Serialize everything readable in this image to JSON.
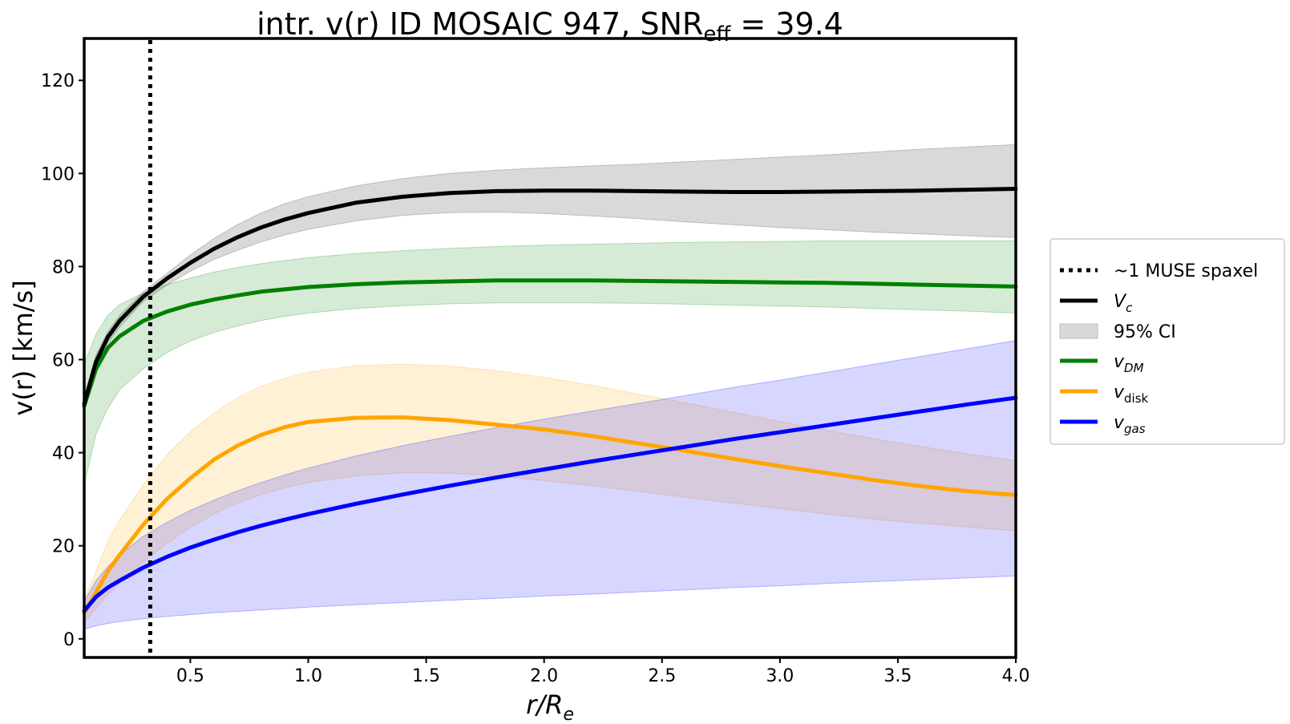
{
  "chart_data": {
    "type": "line",
    "title": {
      "main": "intr. v(r) ID MOSAIC 947, SNR",
      "sub": "eff",
      "tail": " = 39.4"
    },
    "xlabel": {
      "main": "r/R",
      "sub": "e"
    },
    "ylabel": "v(r) [km/s]",
    "xlim": [
      0.05,
      4.0
    ],
    "ylim": [
      -4,
      129
    ],
    "xticks": [
      0.5,
      1.0,
      1.5,
      2.0,
      2.5,
      3.0,
      3.5,
      4.0
    ],
    "xtick_labels": [
      "0.5",
      "1.0",
      "1.5",
      "2.0",
      "2.5",
      "3.0",
      "3.5",
      "4.0"
    ],
    "yticks": [
      0,
      20,
      40,
      60,
      80,
      100,
      120
    ],
    "ytick_labels": [
      "0",
      "20",
      "40",
      "60",
      "80",
      "100",
      "120"
    ],
    "vline": {
      "x": 0.33,
      "label": "~1 MUSE spaxel",
      "color": "#000000"
    },
    "x": [
      0.05,
      0.1,
      0.15,
      0.2,
      0.3,
      0.4,
      0.5,
      0.6,
      0.7,
      0.8,
      0.9,
      1.0,
      1.2,
      1.4,
      1.6,
      1.8,
      2.0,
      2.2,
      2.4,
      2.6,
      2.8,
      3.0,
      3.2,
      3.4,
      3.6,
      3.8,
      4.0
    ],
    "series": [
      {
        "name": "Vc",
        "label_main": "V",
        "label_sub": "c",
        "italic": true,
        "color": "#000000",
        "values": [
          50.5,
          59.5,
          64.8,
          68.3,
          73.5,
          77.4,
          80.8,
          83.8,
          86.3,
          88.4,
          90.1,
          91.5,
          93.7,
          95.0,
          95.8,
          96.2,
          96.3,
          96.3,
          96.2,
          96.1,
          96.0,
          96.0,
          96.1,
          96.2,
          96.3,
          96.5,
          96.7
        ],
        "lower": [
          49.0,
          58.0,
          63.5,
          67.0,
          72.5,
          76.0,
          79.0,
          81.5,
          83.5,
          85.3,
          86.8,
          88.0,
          89.8,
          91.0,
          91.6,
          91.7,
          91.4,
          90.9,
          90.3,
          89.6,
          89.0,
          88.4,
          87.9,
          87.4,
          87.0,
          86.6,
          86.2
        ],
        "upper": [
          52.0,
          61.0,
          66.0,
          69.5,
          74.5,
          78.5,
          82.5,
          86.0,
          89.0,
          91.5,
          93.5,
          95.0,
          97.3,
          98.9,
          100.0,
          100.7,
          101.2,
          101.6,
          102.0,
          102.5,
          103.0,
          103.5,
          104.0,
          104.6,
          105.2,
          105.7,
          106.2
        ]
      },
      {
        "name": "vDM",
        "label_main": "v",
        "label_sub": "DM",
        "italic": true,
        "color": "#008000",
        "values": [
          50.0,
          58.0,
          62.5,
          65.0,
          68.3,
          70.3,
          71.8,
          72.9,
          73.8,
          74.6,
          75.1,
          75.6,
          76.2,
          76.6,
          76.8,
          77.0,
          77.0,
          77.0,
          76.9,
          76.8,
          76.7,
          76.6,
          76.5,
          76.3,
          76.1,
          75.9,
          75.7
        ],
        "lower": [
          33.0,
          44.0,
          49.5,
          53.5,
          58.0,
          61.5,
          64.0,
          65.8,
          67.2,
          68.4,
          69.3,
          70.0,
          71.0,
          71.6,
          72.0,
          72.2,
          72.2,
          72.2,
          72.1,
          71.9,
          71.7,
          71.5,
          71.3,
          71.0,
          70.7,
          70.4,
          70.0
        ],
        "upper": [
          59.0,
          65.5,
          69.5,
          71.8,
          74.3,
          76.1,
          77.5,
          78.8,
          79.8,
          80.6,
          81.3,
          81.9,
          82.8,
          83.4,
          83.9,
          84.3,
          84.6,
          84.8,
          85.0,
          85.2,
          85.3,
          85.4,
          85.5,
          85.5,
          85.5,
          85.5,
          85.5
        ]
      },
      {
        "name": "vdisk",
        "label_main": "v",
        "label_sub": "disk",
        "italic": false,
        "color": "#ffa500",
        "values": [
          5.5,
          10.0,
          14.5,
          18.0,
          24.5,
          30.0,
          34.5,
          38.5,
          41.5,
          43.8,
          45.5,
          46.6,
          47.5,
          47.6,
          47.0,
          46.0,
          45.0,
          43.6,
          42.0,
          40.4,
          38.7,
          37.1,
          35.6,
          34.1,
          32.8,
          31.7,
          30.9
        ],
        "lower": [
          3.5,
          6.5,
          9.5,
          12.0,
          16.5,
          20.5,
          24.0,
          26.8,
          29.2,
          31.0,
          32.4,
          33.6,
          35.0,
          35.7,
          35.6,
          35.0,
          34.0,
          32.9,
          31.7,
          30.4,
          29.2,
          28.0,
          26.8,
          25.7,
          24.8,
          24.0,
          23.2
        ],
        "upper": [
          8.5,
          14.5,
          21.0,
          25.5,
          33.0,
          39.5,
          44.5,
          48.5,
          51.8,
          54.3,
          56.0,
          57.3,
          58.7,
          59.0,
          58.6,
          57.6,
          56.2,
          54.5,
          52.6,
          50.7,
          48.7,
          46.7,
          44.8,
          43.0,
          41.3,
          39.7,
          38.3
        ]
      },
      {
        "name": "vgas",
        "label_main": "v",
        "label_sub": "gas",
        "italic": true,
        "color": "#0000ff",
        "values": [
          6.0,
          9.0,
          11.0,
          12.5,
          15.3,
          17.6,
          19.6,
          21.3,
          22.9,
          24.3,
          25.6,
          26.8,
          29.0,
          31.0,
          32.9,
          34.7,
          36.4,
          38.1,
          39.7,
          41.3,
          42.9,
          44.4,
          45.9,
          47.4,
          48.9,
          50.4,
          51.8
        ],
        "lower": [
          2.0,
          2.8,
          3.3,
          3.7,
          4.3,
          4.8,
          5.2,
          5.6,
          5.9,
          6.2,
          6.5,
          6.8,
          7.3,
          7.8,
          8.3,
          8.7,
          9.2,
          9.6,
          10.1,
          10.5,
          11.0,
          11.4,
          11.9,
          12.3,
          12.7,
          13.1,
          13.5
        ],
        "upper": [
          8.0,
          12.5,
          15.5,
          18.0,
          22.0,
          25.0,
          27.6,
          29.8,
          31.8,
          33.6,
          35.2,
          36.7,
          39.3,
          41.5,
          43.5,
          45.4,
          47.2,
          48.9,
          50.6,
          52.3,
          54.0,
          55.6,
          57.3,
          59.0,
          60.7,
          62.4,
          64.1
        ]
      }
    ],
    "legend": {
      "position": "right-center",
      "ci_label": "95% CI",
      "ci_color": "#d8d8d8"
    }
  }
}
